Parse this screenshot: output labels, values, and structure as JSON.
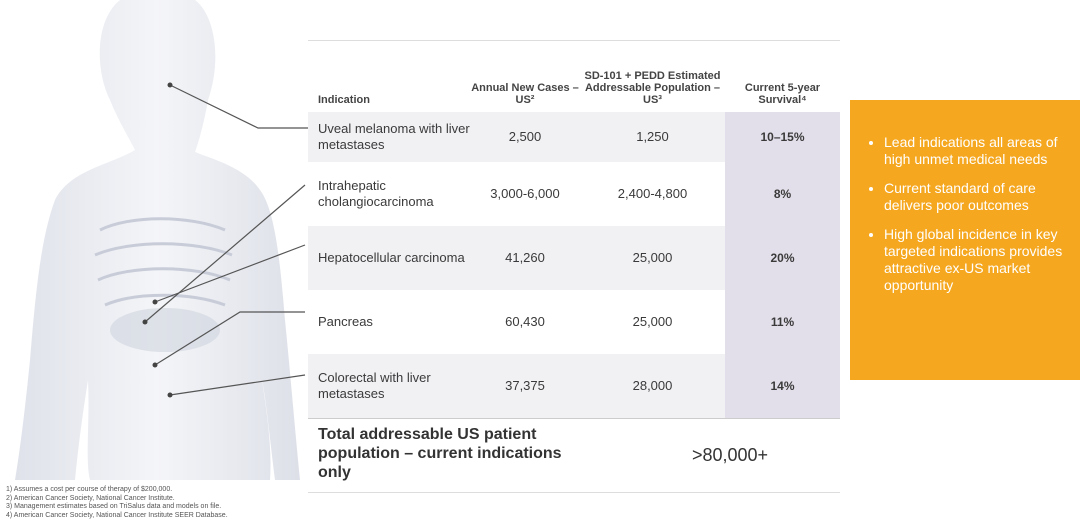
{
  "table": {
    "headers": [
      "Indication",
      "Annual New Cases – US²",
      "SD-101 + PEDD Estimated Addressable Population – US³",
      "Current 5-year Survival⁴"
    ],
    "rows": [
      [
        "Uveal melanoma with liver metastases",
        "2,500",
        "1,250",
        "10–15%"
      ],
      [
        "Intrahepatic cholangiocarcinoma",
        "3,000-6,000",
        "2,400-4,800",
        "8%"
      ],
      [
        "Hepatocellular carcinoma",
        "41,260",
        "25,000",
        "20%"
      ],
      [
        "Pancreas",
        "60,430",
        "25,000",
        "11%"
      ],
      [
        "Colorectal with liver metastases",
        "37,375",
        "28,000",
        "14%"
      ]
    ],
    "total": {
      "label": "Total addressable US patient population – current indications only",
      "value": ">80,000+"
    }
  },
  "callout": {
    "bullets": [
      "Lead indications all areas of high unmet medical needs",
      "Current standard of care delivers poor outcomes",
      "High global incidence in key targeted indications provides attractive ex-US market opportunity"
    ]
  },
  "footnotes": [
    "1)   Assumes a cost per course of therapy of $200,000.",
    "2)   American Cancer Society, National Cancer Institute.",
    "3)   Management estimates based on TriSalus data and models on file.",
    "4)   American Cancer Society, National Cancer Institute SEER Database."
  ]
}
